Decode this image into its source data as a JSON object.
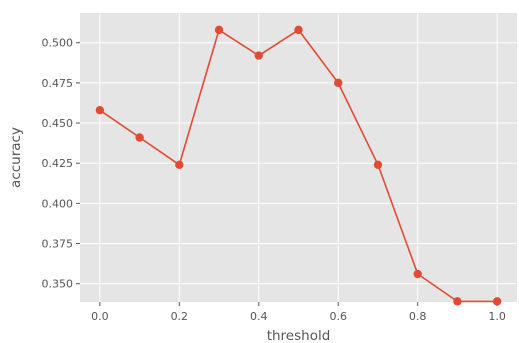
{
  "chart_data": {
    "type": "line",
    "title": "",
    "xlabel": "threshold",
    "ylabel": "accuracy",
    "xlim": [
      -0.05,
      1.05
    ],
    "ylim": [
      0.3386,
      0.5185
    ],
    "grid": true,
    "xticks": [
      0.0,
      0.2,
      0.4,
      0.6,
      0.8,
      1.0
    ],
    "xtick_labels": [
      "0.0",
      "0.2",
      "0.4",
      "0.6",
      "0.8",
      "1.0"
    ],
    "yticks": [
      0.35,
      0.375,
      0.4,
      0.425,
      0.45,
      0.475,
      0.5
    ],
    "ytick_labels": [
      "0.350",
      "0.375",
      "0.400",
      "0.425",
      "0.450",
      "0.475",
      "0.500"
    ],
    "colors": {
      "background": "#E5E5E5",
      "grid": "#FFFFFF",
      "series": "#E24A33",
      "text": "#555555"
    },
    "series": [
      {
        "x": [
          0.0,
          0.1,
          0.2,
          0.3,
          0.4,
          0.5,
          0.6,
          0.7,
          0.8,
          0.9,
          1.0
        ],
        "values": [
          0.458,
          0.441,
          0.424,
          0.508,
          0.492,
          0.508,
          0.475,
          0.424,
          0.356,
          0.339,
          0.339
        ]
      }
    ]
  }
}
